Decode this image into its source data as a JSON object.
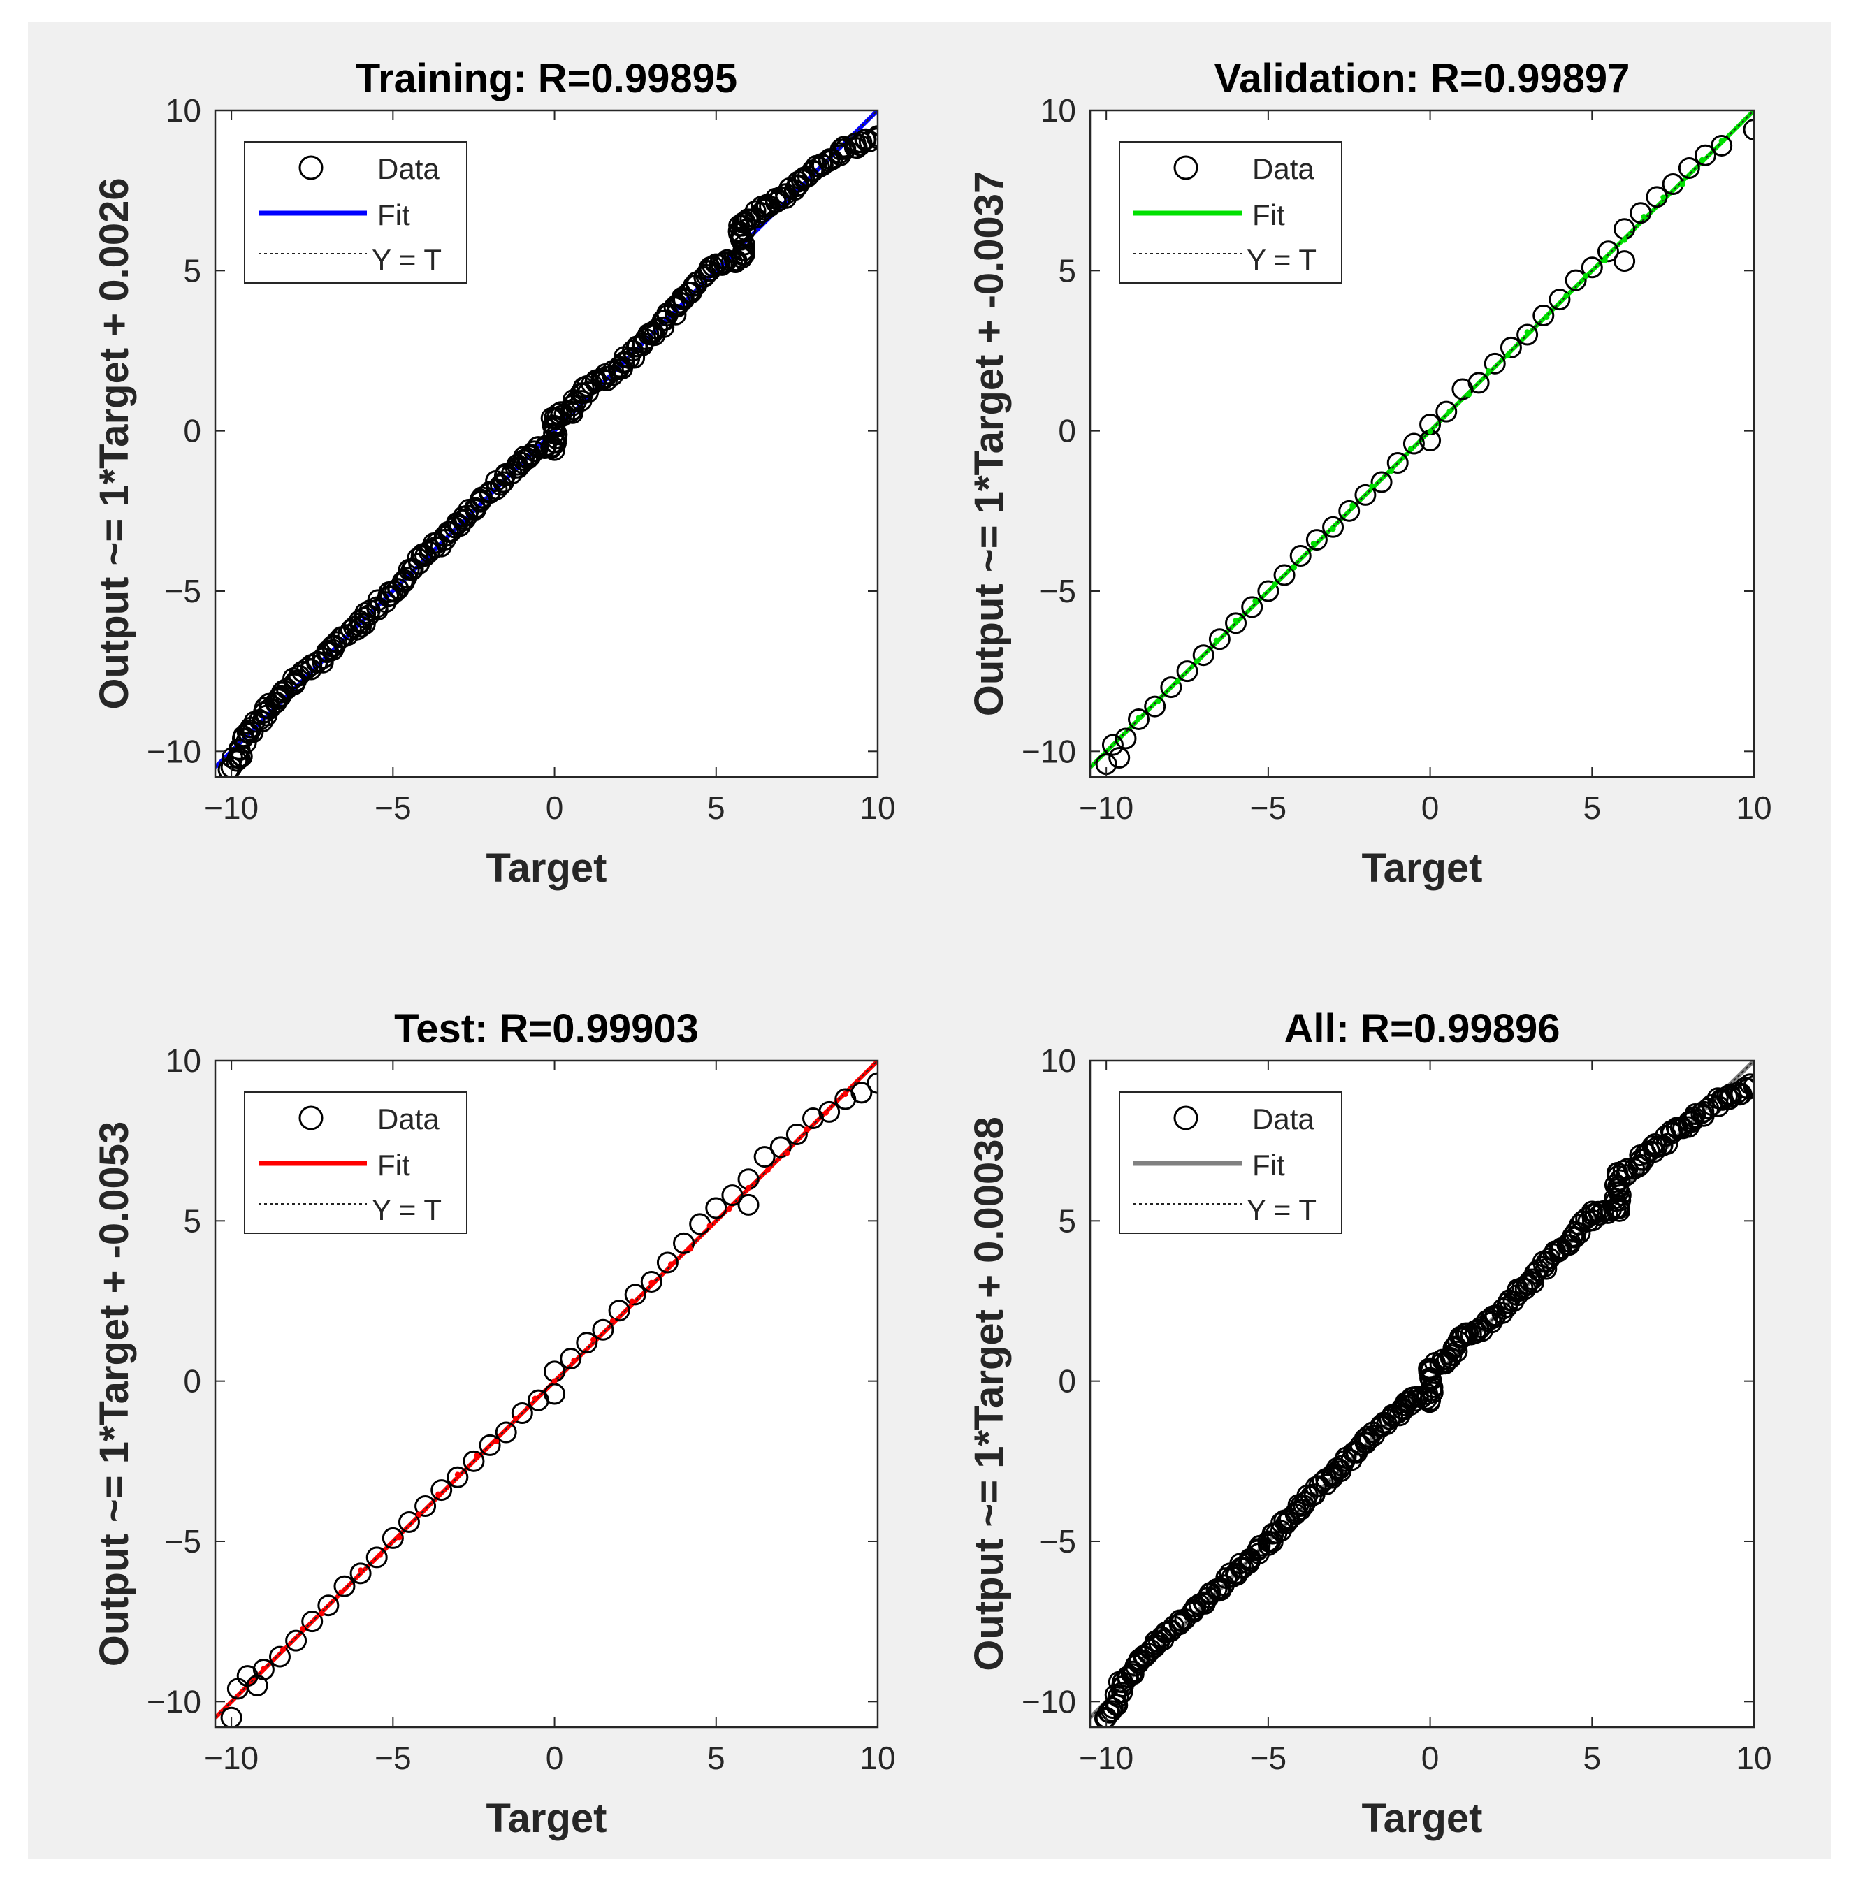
{
  "figure": {
    "background": "#f0f0f0",
    "axes_background": "#ffffff"
  },
  "chart_data": [
    {
      "type": "scatter",
      "title": "Training: R=0.99895",
      "xlabel": "Target",
      "ylabel": "Output ~= 1*Target + 0.0026",
      "xlim": [
        -10.5,
        10
      ],
      "ylim": [
        -10.8,
        10
      ],
      "xticks": [
        -10,
        -5,
        0,
        5,
        10
      ],
      "yticks": [
        -10,
        -5,
        0,
        5,
        10
      ],
      "xtick_labels": [
        "−10",
        "−5",
        "0",
        "5",
        "10"
      ],
      "ytick_labels": [
        "−10",
        "−5",
        "0",
        "5",
        "10"
      ],
      "grid": false,
      "legend": {
        "position": "top-left",
        "entries": [
          "Data",
          "Fit",
          "Y = T"
        ]
      },
      "fit": {
        "slope": 1,
        "intercept": 0.0026,
        "color": "#0000ff"
      },
      "identity_line": {
        "color": "#222222",
        "style": "dotted"
      },
      "series": [
        {
          "name": "Data",
          "marker": "circle",
          "color": "#000000",
          "density": "dense",
          "x": [
            -10,
            -9.8,
            -9.5,
            -9,
            -8.5,
            -8,
            -7,
            -6,
            -5,
            -4,
            -3,
            -2,
            -1,
            -0.5,
            0,
            0,
            0,
            0.5,
            1,
            1.5,
            2,
            3,
            4,
            5,
            5.8,
            5.8,
            5.8,
            6.5,
            7,
            8,
            9,
            9.5,
            10
          ],
          "y": [
            -10.5,
            -10.2,
            -9.4,
            -8.8,
            -8.3,
            -7.8,
            -6.9,
            -6.0,
            -5.0,
            -3.9,
            -2.9,
            -1.9,
            -1.0,
            -0.5,
            -0.6,
            0.1,
            0.4,
            0.6,
            1.4,
            1.6,
            2.0,
            3.0,
            4.1,
            5.2,
            5.4,
            6.0,
            6.4,
            6.9,
            7.3,
            8.1,
            8.8,
            9.0,
            9.2
          ]
        }
      ]
    },
    {
      "type": "scatter",
      "title": "Validation: R=0.99897",
      "xlabel": "Target",
      "ylabel": "Output ~= 1*Target + -0.0037",
      "xlim": [
        -10.5,
        10
      ],
      "ylim": [
        -10.8,
        10
      ],
      "xticks": [
        -10,
        -5,
        0,
        5,
        10
      ],
      "yticks": [
        -10,
        -5,
        0,
        5,
        10
      ],
      "xtick_labels": [
        "−10",
        "−5",
        "0",
        "5",
        "10"
      ],
      "ytick_labels": [
        "−10",
        "−5",
        "0",
        "5",
        "10"
      ],
      "grid": false,
      "legend": {
        "position": "top-left",
        "entries": [
          "Data",
          "Fit",
          "Y = T"
        ]
      },
      "fit": {
        "slope": 1,
        "intercept": -0.0037,
        "color": "#00e000"
      },
      "identity_line": {
        "color": "#222222",
        "style": "dotted"
      },
      "series": [
        {
          "name": "Data",
          "marker": "circle",
          "color": "#000000",
          "density": "sparse",
          "x": [
            -10,
            -9.8,
            -9.6,
            -9.4,
            -9,
            -8.5,
            -8,
            -7.5,
            -7,
            -6.5,
            -6,
            -5.5,
            -5,
            -4.5,
            -4,
            -3.5,
            -3,
            -2.5,
            -2,
            -1.5,
            -1,
            -0.5,
            0,
            0,
            0.5,
            1,
            1.5,
            2,
            2.5,
            3,
            3.5,
            4,
            4.5,
            5,
            5.5,
            6,
            6,
            6.5,
            7,
            7.5,
            8,
            8.5,
            9,
            10
          ],
          "y": [
            -10.4,
            -9.8,
            -10.2,
            -9.6,
            -9.0,
            -8.6,
            -8.0,
            -7.5,
            -7.0,
            -6.5,
            -6.0,
            -5.5,
            -5.0,
            -4.5,
            -3.9,
            -3.4,
            -3.0,
            -2.5,
            -2.0,
            -1.6,
            -1.0,
            -0.4,
            0.2,
            -0.3,
            0.6,
            1.3,
            1.5,
            2.1,
            2.6,
            3.0,
            3.6,
            4.1,
            4.7,
            5.1,
            5.6,
            5.3,
            6.3,
            6.8,
            7.3,
            7.7,
            8.2,
            8.6,
            8.9,
            9.4
          ]
        }
      ]
    },
    {
      "type": "scatter",
      "title": "Test: R=0.99903",
      "xlabel": "Target",
      "ylabel": "Output ~= 1*Target + -0.0053",
      "xlim": [
        -10.5,
        10
      ],
      "ylim": [
        -10.8,
        10
      ],
      "xticks": [
        -10,
        -5,
        0,
        5,
        10
      ],
      "yticks": [
        -10,
        -5,
        0,
        5,
        10
      ],
      "xtick_labels": [
        "−10",
        "−5",
        "0",
        "5",
        "10"
      ],
      "ytick_labels": [
        "−10",
        "−5",
        "0",
        "5",
        "10"
      ],
      "grid": false,
      "legend": {
        "position": "top-left",
        "entries": [
          "Data",
          "Fit",
          "Y = T"
        ]
      },
      "fit": {
        "slope": 1,
        "intercept": -0.0053,
        "color": "#ff0000"
      },
      "identity_line": {
        "color": "#222222",
        "style": "dotted"
      },
      "series": [
        {
          "name": "Data",
          "marker": "circle",
          "color": "#000000",
          "density": "sparse",
          "x": [
            -10,
            -9.8,
            -9.5,
            -9.2,
            -9,
            -8.5,
            -8,
            -7.5,
            -7,
            -6.5,
            -6,
            -5.5,
            -5,
            -4.5,
            -4,
            -3.5,
            -3,
            -2.5,
            -2,
            -1.5,
            -1,
            -0.5,
            0,
            0,
            0.5,
            1,
            1.5,
            2,
            2.5,
            3,
            3.5,
            4,
            4.5,
            5,
            5.5,
            6,
            6,
            6.5,
            7,
            7.5,
            8,
            8.5,
            9,
            9.5,
            10
          ],
          "y": [
            -10.5,
            -9.6,
            -9.2,
            -9.5,
            -9.0,
            -8.6,
            -8.1,
            -7.5,
            -7.0,
            -6.4,
            -6.0,
            -5.5,
            -4.9,
            -4.4,
            -3.9,
            -3.4,
            -3.0,
            -2.5,
            -2.0,
            -1.6,
            -1.0,
            -0.6,
            0.3,
            -0.4,
            0.7,
            1.2,
            1.6,
            2.2,
            2.7,
            3.1,
            3.7,
            4.3,
            4.9,
            5.4,
            5.8,
            5.5,
            6.3,
            7.0,
            7.3,
            7.7,
            8.2,
            8.4,
            8.8,
            9.0,
            9.3
          ]
        }
      ]
    },
    {
      "type": "scatter",
      "title": "All: R=0.99896",
      "xlabel": "Target",
      "ylabel": "Output ~= 1*Target + 0.00038",
      "xlim": [
        -10.5,
        10
      ],
      "ylim": [
        -10.8,
        10
      ],
      "xticks": [
        -10,
        -5,
        0,
        5,
        10
      ],
      "yticks": [
        -10,
        -5,
        0,
        5,
        10
      ],
      "xtick_labels": [
        "−10",
        "−5",
        "0",
        "5",
        "10"
      ],
      "ytick_labels": [
        "−10",
        "−5",
        "0",
        "5",
        "10"
      ],
      "grid": false,
      "legend": {
        "position": "top-left",
        "entries": [
          "Data",
          "Fit",
          "Y = T"
        ]
      },
      "fit": {
        "slope": 1,
        "intercept": 0.00038,
        "color": "#808080"
      },
      "identity_line": {
        "color": "#222222",
        "style": "dotted"
      },
      "series": [
        {
          "name": "Data",
          "marker": "circle",
          "color": "#000000",
          "density": "dense",
          "x": [
            -10,
            -9.8,
            -9.5,
            -9,
            -8.5,
            -8,
            -7,
            -6,
            -5,
            -4,
            -3,
            -2,
            -1,
            -0.5,
            0,
            0,
            0,
            0.5,
            1,
            1.5,
            2,
            3,
            4,
            5,
            5.8,
            5.8,
            5.8,
            6.5,
            7,
            8,
            9,
            9.5,
            10
          ],
          "y": [
            -10.5,
            -10.2,
            -9.4,
            -8.8,
            -8.3,
            -7.8,
            -6.9,
            -6.0,
            -5.0,
            -3.9,
            -2.9,
            -1.9,
            -1.0,
            -0.5,
            -0.6,
            0.1,
            0.4,
            0.6,
            1.4,
            1.6,
            2.0,
            3.0,
            4.1,
            5.2,
            5.4,
            6.0,
            6.4,
            6.9,
            7.3,
            8.1,
            8.8,
            9.0,
            9.2
          ]
        }
      ]
    }
  ]
}
